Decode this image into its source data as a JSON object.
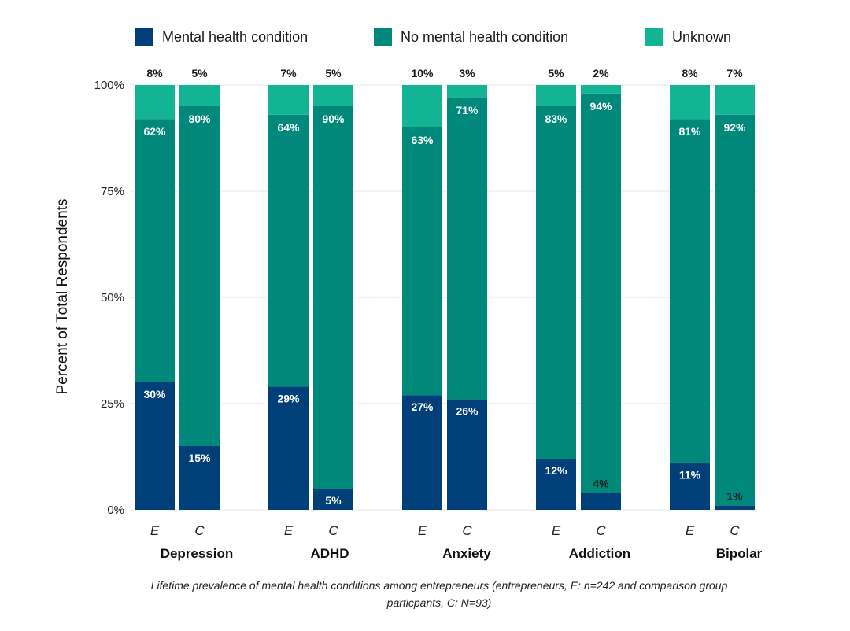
{
  "chart_data": {
    "type": "bar",
    "stacked": true,
    "title": "",
    "xlabel": "",
    "ylabel": "Percent of Total Respondents",
    "ylim": [
      0,
      100
    ],
    "yticks": [
      "0%",
      "25%",
      "50%",
      "75%",
      "100%"
    ],
    "grid": true,
    "legend_position": "top",
    "caption_lines": [
      "Lifetime prevalence of mental health conditions among entrepreneurs (entrepreneurs, E: n=242 and comparison group",
      "particpants, C: N=93)"
    ],
    "groups": [
      {
        "name": "Depression",
        "bars": [
          {
            "label": "E",
            "mental": 30,
            "none": 62,
            "unknown": 8
          },
          {
            "label": "C",
            "mental": 15,
            "none": 80,
            "unknown": 5
          }
        ]
      },
      {
        "name": "ADHD",
        "bars": [
          {
            "label": "E",
            "mental": 29,
            "none": 64,
            "unknown": 7
          },
          {
            "label": "C",
            "mental": 5,
            "none": 90,
            "unknown": 5
          }
        ]
      },
      {
        "name": "Anxiety",
        "bars": [
          {
            "label": "E",
            "mental": 27,
            "none": 63,
            "unknown": 10
          },
          {
            "label": "C",
            "mental": 26,
            "none": 71,
            "unknown": 3
          }
        ]
      },
      {
        "name": "Addiction",
        "bars": [
          {
            "label": "E",
            "mental": 12,
            "none": 83,
            "unknown": 5
          },
          {
            "label": "C",
            "mental": 4,
            "none": 94,
            "unknown": 2
          }
        ]
      },
      {
        "name": "Bipolar",
        "bars": [
          {
            "label": "E",
            "mental": 11,
            "none": 81,
            "unknown": 8
          },
          {
            "label": "C",
            "mental": 1,
            "none": 92,
            "unknown": 7
          }
        ]
      }
    ],
    "series": [
      {
        "key": "mental",
        "name": "Mental health condition",
        "color": "#003f78"
      },
      {
        "key": "none",
        "name": "No mental health condition",
        "color": "#00897b"
      },
      {
        "key": "unknown",
        "name": "Unknown",
        "color": "#12b494"
      }
    ]
  }
}
